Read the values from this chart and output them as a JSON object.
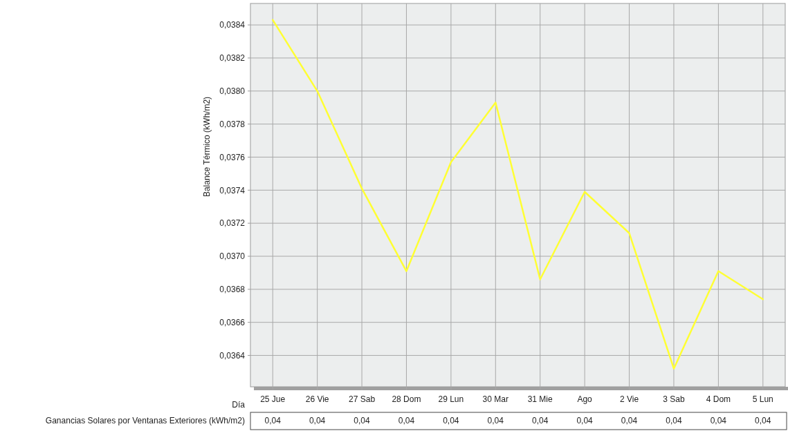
{
  "chart_data": {
    "type": "line",
    "xlabel": "Día",
    "ylabel": "Balance Térmico (kWh/m2)",
    "categories": [
      "25 Jue",
      "26 Vie",
      "27 Sab",
      "28 Dom",
      "29 Lun",
      "30 Mar",
      "31 Mie",
      "Ago",
      "2 Vie",
      "3 Sab",
      "4 Dom",
      "5 Lun"
    ],
    "series": [
      {
        "color": "#ffff33",
        "values": [
          0.03843,
          0.038,
          0.03741,
          0.03691,
          0.03757,
          0.03793,
          0.03686,
          0.03739,
          0.03714,
          0.03632,
          0.03691,
          0.03674
        ]
      }
    ],
    "ylim": [
      0.03621,
      0.03853
    ],
    "yticks": [
      {
        "value": 0.0364,
        "label": "0,0364"
      },
      {
        "value": 0.0366,
        "label": "0,0366"
      },
      {
        "value": 0.0368,
        "label": "0,0368"
      },
      {
        "value": 0.037,
        "label": "0,0370"
      },
      {
        "value": 0.0372,
        "label": "0,0372"
      },
      {
        "value": 0.0374,
        "label": "0,0374"
      },
      {
        "value": 0.0376,
        "label": "0,0376"
      },
      {
        "value": 0.0378,
        "label": "0,0378"
      },
      {
        "value": 0.038,
        "label": "0,0380"
      },
      {
        "value": 0.0382,
        "label": "0,0382"
      },
      {
        "value": 0.0384,
        "label": "0,0384"
      }
    ],
    "grid": true,
    "marker": "none",
    "line_style": "solid",
    "annotations": [
      "Ganancias Solares por Ventanas Exteriores (kWh/m2)",
      "0,04",
      "0,04",
      "0,04",
      "0,04",
      "0,04",
      "0,04",
      "0,04",
      "0,04",
      "0,04",
      "0,04",
      "0,04",
      "0,04"
    ]
  }
}
